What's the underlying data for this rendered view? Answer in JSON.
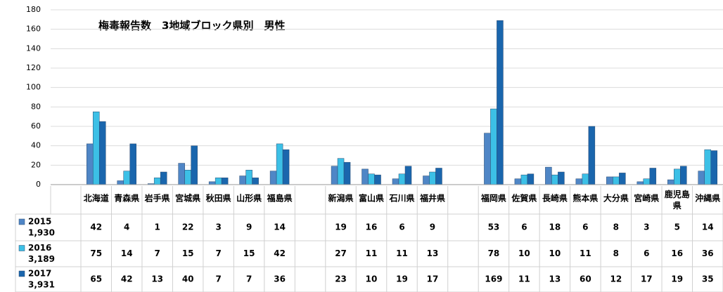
{
  "chart_data": {
    "type": "bar",
    "title": "梅毒報告数　3地域ブロック県別　男性",
    "categories": [
      "北海道",
      "青森県",
      "岩手県",
      "宮城県",
      "秋田県",
      "山形県",
      "福島県",
      null,
      "新潟県",
      "富山県",
      "石川県",
      "福井県",
      null,
      "福岡県",
      "佐賀県",
      "長崎県",
      "熊本県",
      "大分県",
      "宮崎県",
      "鹿児島県",
      "沖縄県"
    ],
    "series": [
      {
        "name": "2015",
        "total": "1,930",
        "color": "#4f86c6",
        "values": [
          42,
          4,
          1,
          22,
          3,
          9,
          14,
          null,
          19,
          16,
          6,
          9,
          null,
          53,
          6,
          18,
          6,
          8,
          3,
          5,
          14
        ]
      },
      {
        "name": "2016",
        "total": "3,189",
        "color": "#3cc0e6",
        "values": [
          75,
          14,
          7,
          15,
          7,
          15,
          42,
          null,
          27,
          11,
          11,
          13,
          null,
          78,
          10,
          10,
          11,
          8,
          6,
          16,
          36
        ]
      },
      {
        "name": "2017",
        "total": "3,931",
        "color": "#1a66ad",
        "values": [
          65,
          42,
          13,
          40,
          7,
          7,
          36,
          null,
          23,
          10,
          19,
          17,
          null,
          169,
          11,
          13,
          60,
          12,
          17,
          19,
          35
        ]
      }
    ],
    "ylim": [
      0,
      180
    ],
    "yticks": [
      0,
      20,
      40,
      60,
      80,
      100,
      120,
      140,
      160,
      180
    ],
    "grid": true
  }
}
